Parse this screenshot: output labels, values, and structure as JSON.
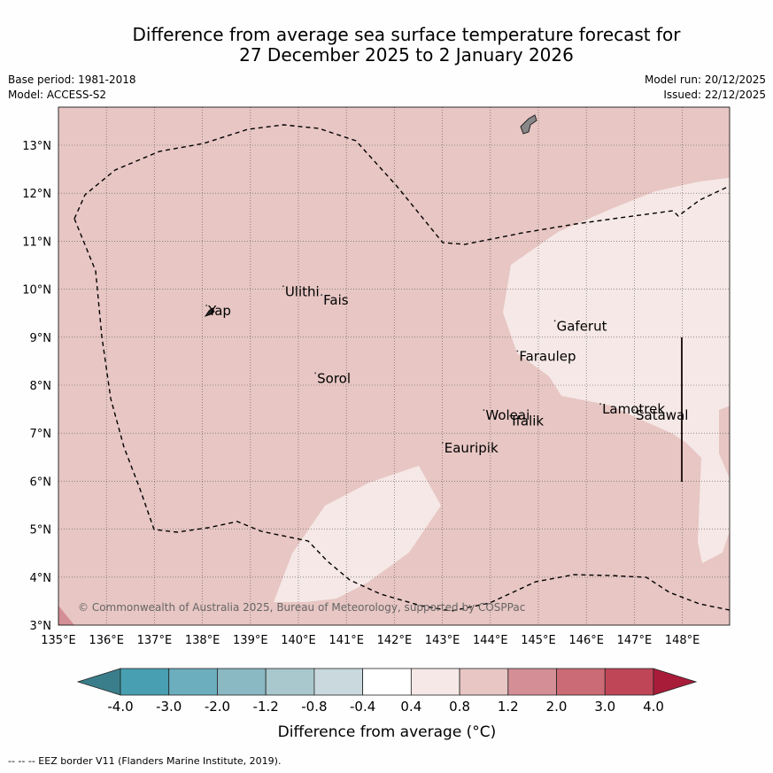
{
  "title": {
    "line1": "Difference from average sea surface temperature forecast for",
    "line2": "27 December 2025 to 2 January 2026"
  },
  "meta": {
    "base_period": "Base period: 1981-2018",
    "model": "Model: ACCESS-S2",
    "model_run": "Model run: 20/12/2025",
    "issued": "Issued: 22/12/2025"
  },
  "map": {
    "lon_range": [
      135,
      149
    ],
    "lat_range": [
      3,
      13.8
    ],
    "lon_ticks": [
      "135°E",
      "136°E",
      "137°E",
      "138°E",
      "139°E",
      "140°E",
      "141°E",
      "142°E",
      "143°E",
      "144°E",
      "145°E",
      "146°E",
      "147°E",
      "148°E"
    ],
    "lat_ticks": [
      "3°N",
      "4°N",
      "5°N",
      "6°N",
      "7°N",
      "8°N",
      "9°N",
      "10°N",
      "11°N",
      "12°N",
      "13°N"
    ],
    "background_fill": "#e7c6c3",
    "light_fill": "#f5e8e6",
    "copyright": "© Commonwealth of Australia 2025, Bureau of Meteorology, supported by COSPPac",
    "places": [
      {
        "name": "Ulithi",
        "lon": 139.72,
        "lat": 9.95
      },
      {
        "name": "Fais",
        "lon": 140.52,
        "lat": 9.77
      },
      {
        "name": "Yap",
        "lon": 138.12,
        "lat": 9.55
      },
      {
        "name": "Gaferut",
        "lon": 145.38,
        "lat": 9.23
      },
      {
        "name": "Faraulep",
        "lon": 144.6,
        "lat": 8.6
      },
      {
        "name": "Sorol",
        "lon": 140.39,
        "lat": 8.14
      },
      {
        "name": "Lamotrek",
        "lon": 146.33,
        "lat": 7.5
      },
      {
        "name": "Woleai",
        "lon": 143.9,
        "lat": 7.37
      },
      {
        "name": "Ifalik",
        "lon": 144.45,
        "lat": 7.25
      },
      {
        "name": "Satawal",
        "lon": 147.03,
        "lat": 7.37
      },
      {
        "name": "Eauripik",
        "lon": 143.04,
        "lat": 6.69
      }
    ]
  },
  "colorbar": {
    "ticks": [
      "-4.0",
      "-3.0",
      "-2.0",
      "-1.2",
      "-0.8",
      "-0.4",
      "0.4",
      "0.8",
      "1.2",
      "2.0",
      "3.0",
      "4.0"
    ],
    "colors": [
      "#489fb2",
      "#6caebe",
      "#8ab8c3",
      "#a9c8ce",
      "#c9d9dd",
      "#ffffff",
      "#f5e8e6",
      "#e7c6c3",
      "#d48f96",
      "#cb6b76",
      "#bf4657"
    ],
    "under_color": "#3a7e8b",
    "over_color": "#a81c39",
    "label": "Difference from average (°C)"
  },
  "footer": "--  --  -- EEZ border V11 (Flanders Marine Institute, 2019)."
}
